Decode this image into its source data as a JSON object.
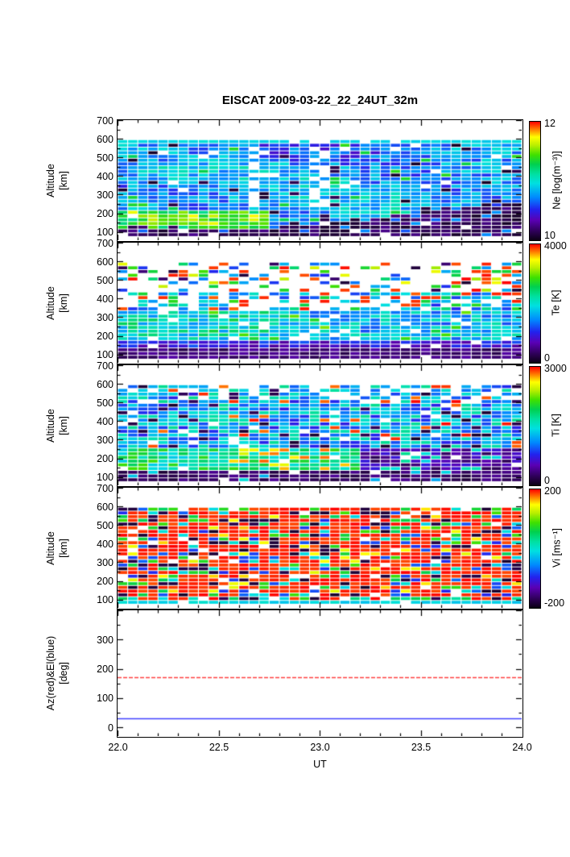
{
  "title": "EISCAT 2009-03-22_22_24UT_32m",
  "xlabel": "UT",
  "x_ticks": [
    {
      "label": "22.0",
      "value": 22.0
    },
    {
      "label": "22.5",
      "value": 22.5
    },
    {
      "label": "23.0",
      "value": 23.0
    },
    {
      "label": "23.5",
      "value": 23.5
    },
    {
      "label": "24.0",
      "value": 24.0
    }
  ],
  "colormap": [
    [
      0.0,
      "#0b0014"
    ],
    [
      0.08,
      "#30005c"
    ],
    [
      0.17,
      "#5a00b4"
    ],
    [
      0.26,
      "#2222ee"
    ],
    [
      0.36,
      "#0088ff"
    ],
    [
      0.48,
      "#00e0e0"
    ],
    [
      0.56,
      "#00e0a0"
    ],
    [
      0.64,
      "#00d050"
    ],
    [
      0.72,
      "#40e000"
    ],
    [
      0.8,
      "#b8ee00"
    ],
    [
      0.87,
      "#ffff00"
    ],
    [
      0.93,
      "#ff8800"
    ],
    [
      1.0,
      "#ff0000"
    ]
  ],
  "chart_data": [
    {
      "id": "ne",
      "type": "heatmap",
      "ylabel": "Altitude\n[km]",
      "y_ticks": [
        700,
        600,
        500,
        400,
        300,
        200,
        100
      ],
      "yrange": [
        55,
        700
      ],
      "xrange": [
        22,
        24
      ],
      "colorbar": {
        "label": "Ne [log(m⁻³)]",
        "max": "12",
        "min": "10"
      },
      "grid": {
        "cols": 40,
        "rows": 26,
        "alt_min": 75,
        "alt_step": 20
      },
      "seed": 7,
      "description": "Electron density 10-12 log(m^-3); mostly cyan/blue 200-580 km, green-yellow E-region enhancement below 200 km before ~22.5 UT, dark low-density band below ~220 km after ~22.7 UT, scattered data gaps"
    },
    {
      "id": "te",
      "type": "heatmap",
      "ylabel": "Altitude\n[km]",
      "y_ticks": [
        700,
        600,
        500,
        400,
        300,
        200,
        100
      ],
      "yrange": [
        55,
        700
      ],
      "xrange": [
        22,
        24
      ],
      "colorbar": {
        "label": "Te [K]",
        "max": "4000",
        "min": "0"
      },
      "grid": {
        "cols": 40,
        "rows": 26,
        "alt_min": 75,
        "alt_step": 20
      },
      "seed": 13,
      "description": "Electron temperature 0-4000 K; dark purple below ~150 km, blue/cyan/green 170-330 km, sparse noisy red/green/blue cells with many gaps above ~350 km, more filled blue on right side"
    },
    {
      "id": "ti",
      "type": "heatmap",
      "ylabel": "Altitude\n[km]",
      "y_ticks": [
        700,
        600,
        500,
        400,
        300,
        200,
        100
      ],
      "yrange": [
        55,
        700
      ],
      "xrange": [
        22,
        24
      ],
      "colorbar": {
        "label": "Ti [K]",
        "max": "3000",
        "min": "0"
      },
      "grid": {
        "cols": 40,
        "rows": 26,
        "alt_min": 75,
        "alt_step": 20
      },
      "seed": 29,
      "description": "Ion temperature 0-3000 K; noisy blue/cyan mix with scattered red and black cells, green-yellow band 140-250 km before 23.2 UT with orange streak near 200 km, dark purple lower band after 23.2 UT"
    },
    {
      "id": "vi",
      "type": "heatmap",
      "ylabel": "Altitude\n[km]",
      "y_ticks": [
        700,
        600,
        500,
        400,
        300,
        200,
        100
      ],
      "yrange": [
        55,
        700
      ],
      "xrange": [
        22,
        24
      ],
      "colorbar": {
        "label": "Vi [ms⁻¹]",
        "max": "200",
        "min": "-200"
      },
      "grid": {
        "cols": 40,
        "rows": 26,
        "alt_min": 75,
        "alt_step": 20
      },
      "seed": 42,
      "description": "Ion velocity -200 to 200 m/s; dominated by saturated red cells with scattered black, green, cyan, blue and yellow cells; thin cyan/green layer at the bottom ~100 km"
    },
    {
      "id": "azel",
      "type": "line",
      "ylabel": "Az(red)&El(blue)\n[deg]",
      "y_ticks": [
        300,
        200,
        100,
        0
      ],
      "yrange": [
        -30,
        400
      ],
      "xrange": [
        22,
        24
      ],
      "series": [
        {
          "name": "Az",
          "color": "#ff4040",
          "value": 170
        },
        {
          "name": "El",
          "color": "#4040ff",
          "value": 30
        }
      ],
      "description": "Constant pointing: azimuth ~170 deg (red), elevation ~30 deg (blue) across 22-24 UT"
    }
  ]
}
